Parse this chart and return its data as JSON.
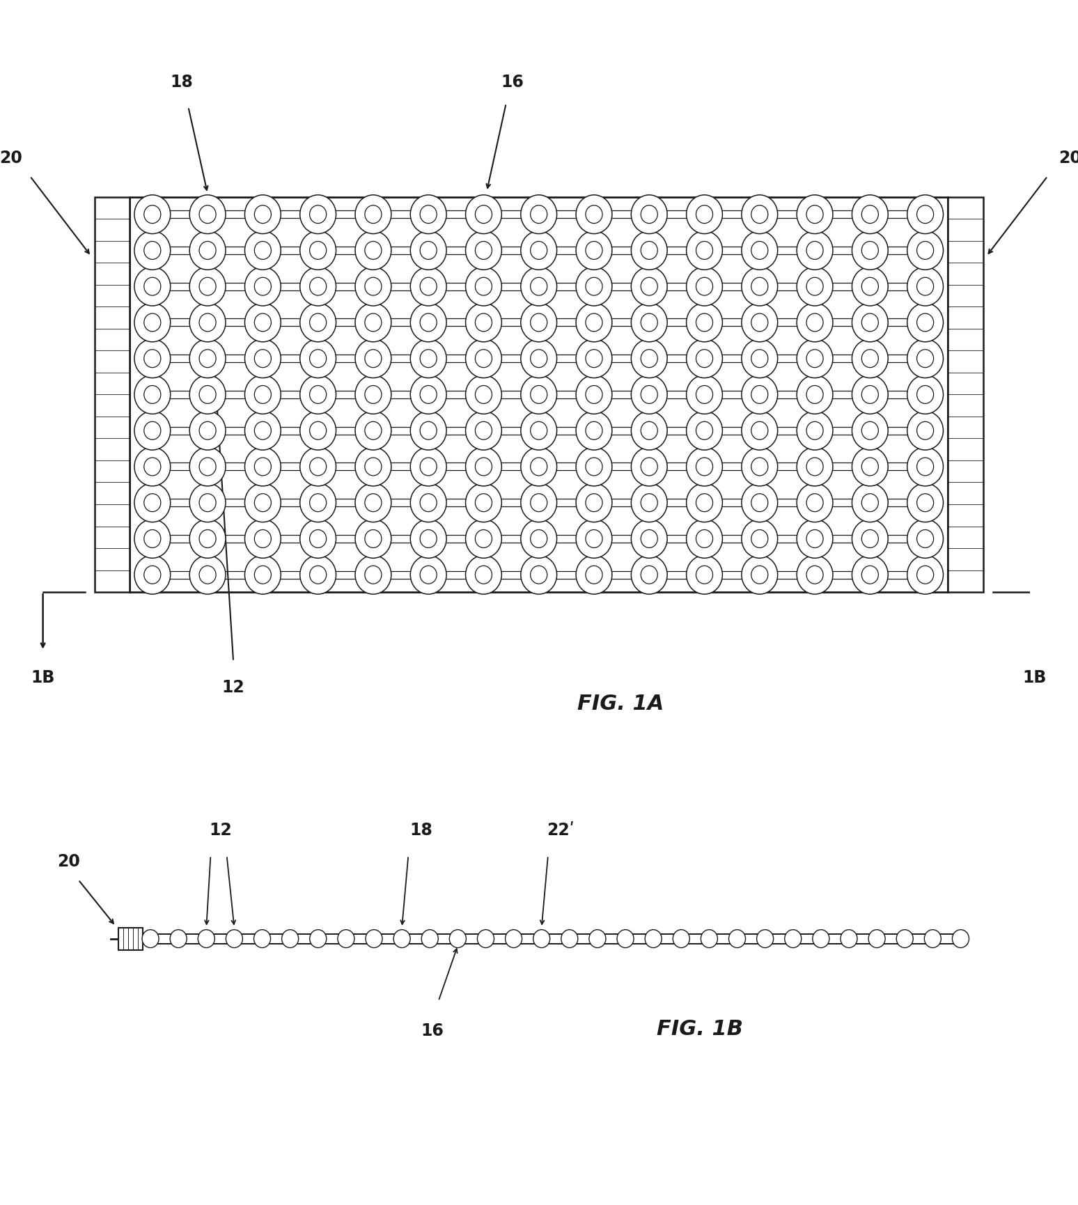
{
  "bg_color": "#ffffff",
  "line_color": "#1a1a1a",
  "fig1a": {
    "title": "FIG. 1A",
    "n_rows": 11,
    "n_cols": 15,
    "label_18": "18",
    "label_16": "16",
    "label_20": "20",
    "label_12": "12",
    "label_1B": "1B"
  },
  "fig1b": {
    "title": "FIG. 1B",
    "label_20": "20",
    "label_12": "12",
    "label_18": "18",
    "label_22": "22",
    "label_16": "16"
  }
}
